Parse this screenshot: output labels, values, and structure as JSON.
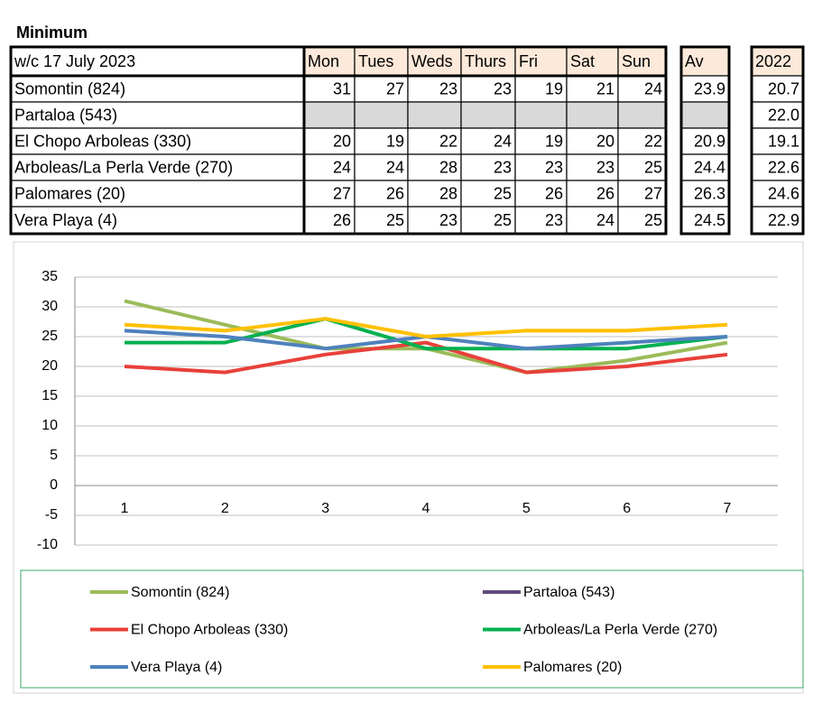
{
  "title": "Minimum",
  "table": {
    "header": [
      "w/c 17 July 2023",
      "Mon",
      "Tues",
      "Weds",
      "Thurs",
      "Fri",
      "Sat",
      "Sun",
      "Av",
      "2022"
    ],
    "rows": [
      [
        "Somontin (824)",
        "31",
        "27",
        "23",
        "23",
        "19",
        "21",
        "24",
        "23.9",
        "20.7"
      ],
      [
        "Partaloa (543)",
        null,
        null,
        null,
        null,
        null,
        null,
        null,
        null,
        "22.0"
      ],
      [
        "El Chopo Arboleas (330)",
        "20",
        "19",
        "22",
        "24",
        "19",
        "20",
        "22",
        "20.9",
        "19.1"
      ],
      [
        "Arboleas/La Perla Verde (270)",
        "24",
        "24",
        "28",
        "23",
        "23",
        "23",
        "25",
        "24.4",
        "22.6"
      ],
      [
        "Palomares (20)",
        "27",
        "26",
        "28",
        "25",
        "26",
        "26",
        "27",
        "26.3",
        "24.6"
      ],
      [
        "Vera Playa (4)",
        "26",
        "25",
        "23",
        "25",
        "23",
        "24",
        "25",
        "24.5",
        "22.9"
      ]
    ]
  },
  "chart_data": {
    "type": "line",
    "categories": [
      1,
      2,
      3,
      4,
      5,
      6,
      7
    ],
    "ylim": [
      -10,
      35
    ],
    "yticks": [
      -10,
      -5,
      0,
      5,
      10,
      15,
      20,
      25,
      30,
      35
    ],
    "grid": true,
    "series": [
      {
        "name": "Somontin (824)",
        "color": "#9bbb59",
        "values": [
          31,
          27,
          23,
          23,
          19,
          21,
          24
        ]
      },
      {
        "name": "Partaloa (543)",
        "color": "#604a7b",
        "values": [
          null,
          null,
          null,
          null,
          null,
          null,
          null
        ]
      },
      {
        "name": "El Chopo Arboleas (330)",
        "color": "#e8403a",
        "values": [
          20,
          19,
          22,
          24,
          19,
          20,
          22
        ]
      },
      {
        "name": "Arboleas/La Perla Verde (270)",
        "color": "#00b050",
        "values": [
          24,
          24,
          28,
          23,
          23,
          23,
          25
        ]
      },
      {
        "name": "Vera Playa (4)",
        "color": "#4f81bd",
        "values": [
          26,
          25,
          23,
          25,
          23,
          24,
          25
        ]
      },
      {
        "name": "Palomares (20)",
        "color": "#ffc000",
        "values": [
          27,
          26,
          28,
          25,
          26,
          26,
          27
        ]
      }
    ]
  }
}
